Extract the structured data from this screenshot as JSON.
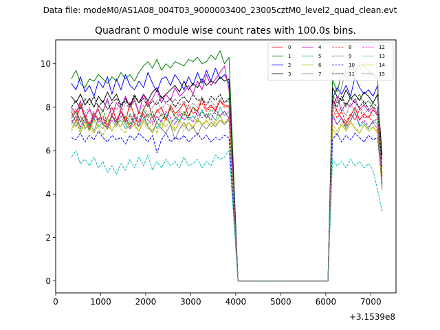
{
  "chart_data": {
    "type": "line",
    "suptitle": "Data file: modeM0/AS1A08_004T03_9000003400_23005cztM0_level2_quad_clean.evt",
    "title": "Quadrant 0 module wise count rates with 100.0s bins.",
    "xlabel": "",
    "ylabel": "",
    "x_offset_label": "+3.1539e8",
    "xlim": [
      0,
      7560
    ],
    "ylim": [
      -0.55,
      11.1
    ],
    "xticks": [
      0,
      1000,
      2000,
      3000,
      4000,
      5000,
      6000,
      7000
    ],
    "xtick_labels": [
      "0",
      "1000",
      "2000",
      "3000",
      "4000",
      "5000",
      "6000",
      "7000"
    ],
    "yticks": [
      0,
      2,
      4,
      6,
      8,
      10
    ],
    "ytick_labels": [
      "0",
      "2",
      "4",
      "6",
      "8",
      "10"
    ],
    "legend_position": "top-right",
    "legend_columns": 4,
    "x_segments": [
      {
        "start": 350,
        "end": 3850,
        "step": 100
      },
      {
        "start": 4050,
        "end": 6050,
        "step": 100,
        "constant": 0
      },
      {
        "start": 6150,
        "end": 7250,
        "step": 100
      }
    ],
    "series": [
      {
        "name": "0",
        "color": "#ff0000",
        "dash": "solid",
        "seg1": [
          7.8,
          7.3,
          8.1,
          7.5,
          7.0,
          7.6,
          7.9,
          7.2,
          7.5,
          8.0,
          7.4,
          7.8,
          7.3,
          8.2,
          7.6,
          7.1,
          7.9,
          8.3,
          7.5,
          7.8,
          8.0,
          7.4,
          8.1,
          7.7,
          7.9,
          8.2,
          7.6,
          8.0,
          7.8,
          8.4,
          7.9,
          8.1,
          7.8,
          8.3,
          8.1,
          8.0
        ],
        "seg3": [
          8.5,
          7.8,
          7.5,
          7.2,
          7.6,
          8.0,
          7.4,
          7.7,
          7.5,
          7.9,
          7.6,
          5.6
        ]
      },
      {
        "name": "1",
        "color": "#008000",
        "dash": "solid",
        "seg1": [
          9.3,
          9.7,
          9.1,
          8.9,
          9.3,
          9.2,
          9.5,
          9.3,
          9.1,
          9.4,
          9.2,
          9.6,
          9.3,
          9.5,
          9.2,
          9.6,
          9.9,
          10.1,
          9.8,
          10.2,
          9.7,
          10.0,
          9.8,
          10.1,
          10.0,
          9.9,
          10.2,
          10.1,
          10.3,
          10.0,
          10.1,
          10.4,
          10.2,
          10.6,
          10.0,
          10.3
        ],
        "seg3": [
          9.3,
          8.7,
          9.5,
          9.4,
          9.9,
          9.6,
          10.0,
          9.9,
          9.7,
          9.5,
          9.4,
          4.5
        ]
      },
      {
        "name": "2",
        "color": "#0000ff",
        "dash": "solid",
        "seg1": [
          9.1,
          8.8,
          9.4,
          8.7,
          9.0,
          8.5,
          9.2,
          8.9,
          9.4,
          8.6,
          9.3,
          8.8,
          9.5,
          9.0,
          8.8,
          9.2,
          8.9,
          9.6,
          9.1,
          8.7,
          9.3,
          9.4,
          9.0,
          9.5,
          9.2,
          8.8,
          9.4,
          9.0,
          9.6,
          9.1,
          9.7,
          9.2,
          9.8,
          9.3,
          9.5,
          9.1
        ],
        "seg3": [
          8.4,
          8.9,
          8.6,
          9.0,
          8.5,
          9.4,
          8.9,
          8.6,
          8.8,
          8.5,
          9.0,
          4.4
        ]
      },
      {
        "name": "3",
        "color": "#000000",
        "dash": "solid",
        "seg1": [
          8.5,
          8.2,
          8.6,
          8.1,
          8.4,
          8.0,
          8.5,
          8.2,
          8.7,
          8.3,
          8.6,
          8.1,
          8.4,
          8.0,
          8.5,
          8.2,
          8.6,
          8.3,
          8.7,
          8.9,
          8.4,
          8.6,
          8.8,
          9.0,
          8.7,
          9.2,
          8.8,
          9.1,
          8.9,
          9.3,
          9.0,
          9.2,
          9.1,
          9.4,
          9.2,
          9.3
        ],
        "seg3": [
          8.9,
          8.5,
          8.3,
          8.8,
          8.4,
          8.6,
          8.3,
          8.7,
          8.5,
          8.2,
          8.6,
          5.8
        ]
      },
      {
        "name": "4",
        "color": "#cc00cc",
        "dash": "solid",
        "seg1": [
          8.0,
          7.7,
          8.3,
          7.5,
          7.9,
          7.4,
          8.1,
          7.8,
          8.4,
          7.6,
          8.2,
          7.9,
          8.5,
          8.0,
          8.3,
          7.7,
          8.6,
          8.1,
          8.4,
          8.8,
          8.2,
          8.6,
          8.3,
          8.9,
          8.5,
          8.7,
          9.0,
          8.6,
          9.2,
          8.8,
          9.5,
          9.0,
          9.3,
          9.6,
          9.9,
          8.8
        ],
        "seg3": [
          8.0,
          8.5,
          7.8,
          8.2,
          8.0,
          8.4,
          7.9,
          8.1,
          7.8,
          8.0,
          7.7,
          4.8
        ]
      },
      {
        "name": "5",
        "color": "#20c0a0",
        "dash": "solid",
        "seg1": [
          7.2,
          7.6,
          7.0,
          7.4,
          6.9,
          7.5,
          7.1,
          7.3,
          7.0,
          7.6,
          7.2,
          7.4,
          7.0,
          7.7,
          7.3,
          7.1,
          7.5,
          7.2,
          7.6,
          7.0,
          7.4,
          7.7,
          7.2,
          7.5,
          7.3,
          7.8,
          7.4,
          7.6,
          7.3,
          7.9,
          7.5,
          7.7,
          7.4,
          8.0,
          7.6,
          7.8
        ],
        "seg3": [
          7.7,
          7.2,
          7.5,
          7.0,
          7.4,
          7.8,
          7.1,
          7.3,
          7.0,
          7.4,
          7.2,
          4.3
        ]
      },
      {
        "name": "6",
        "color": "#b8b800",
        "dash": "solid",
        "seg1": [
          7.0,
          7.4,
          6.9,
          7.3,
          7.1,
          6.8,
          7.2,
          7.0,
          7.5,
          6.9,
          7.3,
          7.1,
          7.6,
          7.0,
          7.2,
          6.9,
          7.4,
          7.1,
          6.8,
          7.3,
          7.0,
          7.5,
          7.2,
          6.9,
          7.4,
          7.1,
          7.3,
          7.0,
          7.5,
          7.2,
          7.4,
          7.1,
          7.3,
          7.6,
          7.2,
          7.4
        ],
        "seg3": [
          7.0,
          6.7,
          7.2,
          6.9,
          7.3,
          7.0,
          6.8,
          7.2,
          6.9,
          7.1,
          6.8,
          4.2
        ]
      },
      {
        "name": "7",
        "color": "#808080",
        "dash": "solid",
        "seg1": [
          7.4,
          7.1,
          7.6,
          7.0,
          7.3,
          6.9,
          7.5,
          7.2,
          7.0,
          7.4,
          7.1,
          7.6,
          7.2,
          7.0,
          7.5,
          7.3,
          7.7,
          7.1,
          6.9,
          7.3,
          7.0,
          6.8,
          7.2,
          6.5,
          7.0,
          7.3,
          6.9,
          7.1,
          6.7,
          7.2,
          7.0,
          7.3,
          7.1,
          7.4,
          7.2,
          7.5
        ],
        "seg3": [
          7.9,
          8.3,
          8.9,
          9.8,
          10.0,
          9.7,
          9.9,
          9.5,
          9.6,
          9.4,
          9.3,
          4.3
        ]
      },
      {
        "name": "8",
        "color": "#ff0000",
        "dash": "dashed",
        "seg1": [
          7.6,
          7.9,
          7.3,
          7.7,
          7.2,
          7.8,
          7.4,
          7.6,
          7.1,
          7.7,
          7.3,
          7.9,
          7.4,
          7.6,
          7.2,
          7.8,
          7.5,
          7.7,
          7.3,
          7.9,
          7.6,
          7.4,
          8.0,
          7.5,
          7.8,
          7.6,
          8.1,
          7.7,
          7.9,
          8.2,
          7.8,
          8.0,
          7.9,
          8.3,
          8.0,
          8.1
        ],
        "seg3": [
          7.9,
          7.5,
          7.8,
          7.3,
          7.7,
          7.4,
          7.9,
          7.5,
          7.6,
          7.3,
          7.5,
          4.9
        ]
      },
      {
        "name": "9",
        "color": "#008000",
        "dash": "dashed",
        "seg1": [
          7.5,
          7.8,
          7.3,
          7.6,
          7.1,
          7.7,
          7.4,
          7.9,
          7.2,
          7.6,
          7.3,
          7.8,
          7.5,
          7.2,
          7.7,
          7.4,
          7.9,
          7.5,
          7.8,
          7.3,
          7.7,
          7.5,
          7.9,
          7.6,
          7.4,
          7.8,
          7.5,
          8.0,
          7.6,
          7.8,
          7.5,
          7.9,
          7.7,
          7.6,
          7.8,
          7.5
        ],
        "seg3": [
          8.6,
          8.2,
          8.4,
          8.0,
          8.5,
          8.2,
          8.6,
          8.1,
          8.3,
          8.0,
          7.9,
          5.0
        ]
      },
      {
        "name": "10",
        "color": "#0000ff",
        "dash": "dashed",
        "seg1": [
          6.6,
          6.5,
          6.8,
          6.4,
          6.7,
          6.5,
          6.9,
          6.6,
          6.4,
          6.7,
          6.5,
          6.6,
          6.3,
          6.7,
          6.5,
          6.8,
          6.6,
          6.4,
          6.7,
          5.9,
          6.5,
          6.8,
          6.4,
          6.6,
          6.5,
          6.7,
          6.4,
          6.6,
          6.8,
          6.5,
          6.7,
          6.4,
          6.6,
          6.5,
          6.7,
          6.6
        ],
        "seg3": [
          6.5,
          6.8,
          6.4,
          6.7,
          6.5,
          6.8,
          6.6,
          6.4,
          6.7,
          6.5,
          6.6,
          4.5
        ]
      },
      {
        "name": "11",
        "color": "#000000",
        "dash": "dashed",
        "seg1": [
          8.0,
          8.3,
          7.9,
          8.4,
          8.1,
          8.5,
          8.0,
          8.3,
          7.9,
          8.2,
          8.4,
          8.0,
          8.3,
          8.1,
          8.6,
          8.2,
          8.4,
          8.0,
          8.3,
          8.1,
          8.5,
          8.2,
          8.4,
          8.0,
          8.3,
          8.5,
          8.2,
          8.6,
          8.3,
          8.4,
          8.1,
          8.5,
          8.3,
          8.6,
          8.2,
          8.4
        ],
        "seg3": [
          8.3,
          8.0,
          8.5,
          8.1,
          8.4,
          8.2,
          8.0,
          8.3,
          7.9,
          8.2,
          8.0,
          5.2
        ]
      },
      {
        "name": "12",
        "color": "#cc00cc",
        "dash": "dashed",
        "seg1": [
          7.3,
          7.6,
          7.1,
          7.5,
          7.2,
          7.7,
          7.3,
          7.5,
          7.0,
          7.6,
          7.2,
          7.8,
          7.4,
          7.1,
          7.6,
          7.3,
          7.7,
          7.4,
          7.2,
          7.6,
          7.3,
          7.8,
          7.5,
          7.2,
          7.7,
          7.4,
          7.6,
          7.3,
          7.8,
          7.5,
          7.7,
          7.4,
          7.9,
          7.6,
          7.8,
          7.5
        ],
        "seg3": [
          7.6,
          7.2,
          7.5,
          7.1,
          7.4,
          7.7,
          7.2,
          7.4,
          7.1,
          7.3,
          7.0,
          4.6
        ]
      },
      {
        "name": "13",
        "color": "#00b8b8",
        "dash": "dashed",
        "seg1": [
          5.7,
          6.0,
          5.4,
          5.6,
          5.3,
          5.7,
          5.2,
          5.5,
          5.0,
          5.3,
          4.9,
          5.4,
          5.1,
          5.6,
          5.2,
          5.7,
          5.3,
          5.8,
          5.1,
          5.5,
          5.2,
          5.6,
          5.3,
          5.5,
          5.2,
          5.7,
          5.3,
          5.4,
          5.6,
          5.2,
          5.5,
          5.3,
          5.8,
          5.6,
          5.7,
          6.0
        ],
        "seg3": [
          5.6,
          5.3,
          5.5,
          5.2,
          5.6,
          5.3,
          5.5,
          5.2,
          5.4,
          5.1,
          4.2,
          3.2
        ]
      },
      {
        "name": "14",
        "color": "#b8b800",
        "dash": "dashed",
        "seg1": [
          6.9,
          7.3,
          6.8,
          7.2,
          6.9,
          7.4,
          7.0,
          6.7,
          7.2,
          6.9,
          7.3,
          7.0,
          6.8,
          7.4,
          7.1,
          6.9,
          7.3,
          7.0,
          7.2,
          6.8,
          7.3,
          7.1,
          7.4,
          7.0,
          7.2,
          6.9,
          7.3,
          7.1,
          7.4,
          7.2,
          7.3,
          7.5,
          7.2,
          7.4,
          7.3,
          7.5
        ],
        "seg3": [
          7.2,
          6.9,
          7.3,
          7.0,
          7.4,
          7.1,
          6.8,
          7.2,
          6.9,
          7.1,
          6.9,
          4.4
        ]
      },
      {
        "name": "15",
        "color": "#808080",
        "dash": "dashed",
        "seg1": [
          7.9,
          7.6,
          8.2,
          7.7,
          8.0,
          7.5,
          8.1,
          7.8,
          8.3,
          7.6,
          8.0,
          7.7,
          8.2,
          7.9,
          8.4,
          7.8,
          8.1,
          7.6,
          8.0,
          8.3,
          7.9,
          8.2,
          8.0,
          8.4,
          8.1,
          8.3,
          7.9,
          8.2,
          8.0,
          8.5,
          8.1,
          8.3,
          8.0,
          8.4,
          8.2,
          8.3
        ],
        "seg3": [
          8.1,
          7.7,
          8.0,
          7.6,
          8.2,
          7.8,
          8.0,
          7.7,
          7.9,
          7.6,
          7.8,
          5.0
        ]
      }
    ]
  }
}
